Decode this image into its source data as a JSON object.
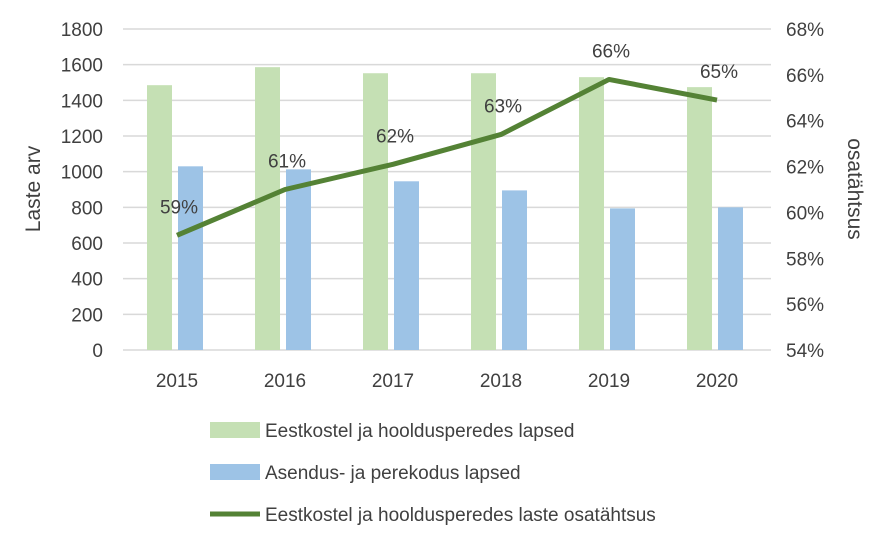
{
  "chart_data": {
    "type": "bar+line",
    "categories": [
      "2015",
      "2016",
      "2017",
      "2018",
      "2019",
      "2020"
    ],
    "ylabel": "Laste arv",
    "y2label": "osatähtsus",
    "ylim": [
      0,
      1800
    ],
    "yticks": [
      "0",
      "200",
      "400",
      "600",
      "800",
      "1000",
      "1200",
      "1400",
      "1600",
      "1800"
    ],
    "y2lim": [
      54,
      68
    ],
    "y2ticks": [
      "54%",
      "56%",
      "58%",
      "60%",
      "62%",
      "64%",
      "66%",
      "68%"
    ],
    "grid": true,
    "legend_placement": "bottom",
    "series": [
      {
        "name": "Eestkostel ja hooldusperedes lapsed",
        "type": "bar",
        "axis": "left",
        "color": "#c5e0b4",
        "values": [
          1485,
          1586,
          1552,
          1552,
          1530,
          1474
        ]
      },
      {
        "name": "Asendus- ja perekodus lapsed",
        "type": "bar",
        "axis": "left",
        "color": "#9dc3e6",
        "values": [
          1030,
          1013,
          946,
          895,
          794,
          800
        ]
      },
      {
        "name": "Eestkostel ja hooldusperedes laste osatähtsus",
        "type": "line",
        "axis": "right",
        "color": "#548235",
        "values": [
          59.0,
          61.0,
          62.1,
          63.4,
          65.8,
          64.9
        ],
        "data_labels": [
          "59%",
          "61%",
          "62%",
          "63%",
          "66%",
          "65%"
        ]
      }
    ]
  }
}
